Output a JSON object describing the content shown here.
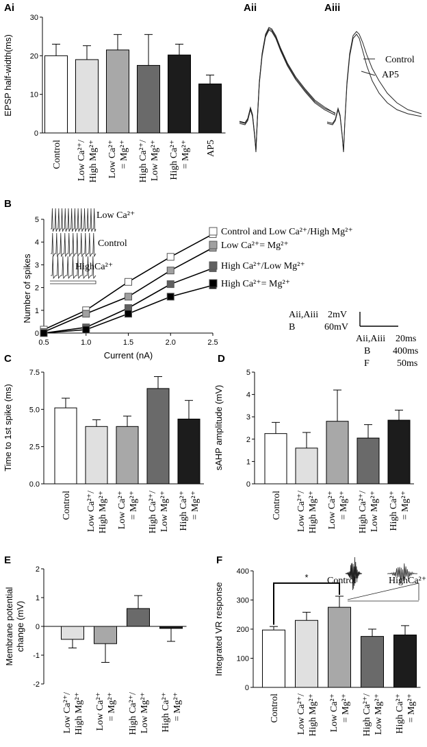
{
  "panels": {
    "ai": "Ai",
    "aii": "Aii",
    "aiii": "Aiii",
    "b": "B",
    "c": "C",
    "d": "D",
    "e": "E",
    "f": "F"
  },
  "palette": {
    "control": "#ffffff",
    "lowCaHighMg": "#e0e0e0",
    "lowCaEqMg": "#a8a8a8",
    "highCaLowMg": "#6a6a6a",
    "highCaEqMg": "#1c1c1c",
    "ap5": "#1c1c1c"
  },
  "labels": {
    "control": "Control",
    "lowCaHighMg": [
      "Low Ca²⁺/",
      "High Mg²⁺"
    ],
    "lowCaEqMg": [
      "Low Ca²⁺",
      "= Mg²⁺"
    ],
    "highCaLowMg": [
      "High Ca²⁺/",
      "Low Mg²⁺"
    ],
    "highCaEqMg": [
      "High Ca²⁺",
      "= Mg²⁺"
    ],
    "ap5": "AP5"
  },
  "traces": {
    "aiii_legend": [
      "Control",
      "AP5"
    ],
    "b_insets": [
      "Low Ca²⁺",
      "Control",
      "HighCa²⁺"
    ],
    "f_insets": [
      "Control",
      "HighCa²⁺"
    ]
  },
  "scalebar": {
    "lines": [
      [
        "Aii,Aiii",
        "2mV"
      ],
      [
        "B",
        "60mV"
      ]
    ],
    "time": [
      [
        "Aii,Aiii",
        "20ms"
      ],
      [
        "B",
        "400ms"
      ],
      [
        "F",
        "50ms"
      ]
    ]
  },
  "chart_data": [
    {
      "id": "Ai",
      "type": "bar",
      "ylabel": "EPSP half-width(ms)",
      "ylim": [
        0,
        30
      ],
      "yticks": [
        0,
        10,
        20,
        30
      ],
      "categories": [
        "control",
        "lowCaHighMg",
        "lowCaEqMg",
        "highCaLowMg",
        "highCaEqMg",
        "ap5"
      ],
      "values": [
        20,
        19,
        21.5,
        17.5,
        20.2,
        12.7
      ],
      "errors": [
        3,
        3.6,
        4,
        8,
        2.8,
        2.3
      ]
    },
    {
      "id": "B",
      "type": "line",
      "xlabel": "Current (nA)",
      "ylabel": "Number of spikes",
      "xlim": [
        0.5,
        2.5
      ],
      "ylim": [
        0,
        5
      ],
      "xticks": [
        0.5,
        1.0,
        1.5,
        2.0,
        2.5
      ],
      "yticks": [
        0,
        1,
        2,
        3,
        4,
        5
      ],
      "series": [
        {
          "name": "Control and Low Ca²⁺/High Mg²⁺",
          "color": "#ffffff",
          "x": [
            0.5,
            1.0,
            1.5,
            2.0,
            2.5
          ],
          "values": [
            0.15,
            1.0,
            2.25,
            3.35,
            4.35
          ]
        },
        {
          "name": "Low Ca²⁺= Mg²⁺",
          "color": "#a0a0a0",
          "x": [
            0.5,
            1.0,
            1.5,
            2.0,
            2.5
          ],
          "values": [
            0.05,
            0.85,
            1.6,
            2.75,
            3.75
          ]
        },
        {
          "name": "High Ca²⁺/Low Mg²⁺",
          "color": "#606060",
          "x": [
            0.5,
            1.0,
            1.5,
            2.0,
            2.5
          ],
          "values": [
            0.0,
            0.25,
            1.1,
            2.15,
            2.85
          ]
        },
        {
          "name": "High Ca²⁺= Mg²⁺",
          "color": "#000000",
          "x": [
            0.5,
            1.0,
            1.5,
            2.0,
            2.5
          ],
          "values": [
            0.0,
            0.15,
            0.85,
            1.6,
            2.1
          ]
        }
      ]
    },
    {
      "id": "C",
      "type": "bar",
      "ylabel": "Time to 1st spike (ms)",
      "ylim": [
        0,
        7.5
      ],
      "yticks": [
        0.0,
        2.5,
        5.0,
        7.5
      ],
      "categories": [
        "control",
        "lowCaHighMg",
        "lowCaEqMg",
        "highCaLowMg",
        "highCaEqMg"
      ],
      "values": [
        5.1,
        3.85,
        3.85,
        6.4,
        4.35
      ],
      "errors": [
        0.65,
        0.45,
        0.7,
        0.8,
        1.25
      ]
    },
    {
      "id": "D",
      "type": "bar",
      "ylabel": "sAHP amplitude (mV)",
      "ylim": [
        0,
        5
      ],
      "yticks": [
        0,
        1,
        2,
        3,
        4,
        5
      ],
      "categories": [
        "control",
        "lowCaHighMg",
        "lowCaEqMg",
        "highCaLowMg",
        "highCaEqMg"
      ],
      "values": [
        2.25,
        1.6,
        2.8,
        2.05,
        2.85
      ],
      "errors": [
        0.5,
        0.7,
        1.4,
        0.6,
        0.45
      ]
    },
    {
      "id": "E",
      "type": "bar",
      "ylabel": [
        "Membrane potential",
        "change (mV)"
      ],
      "ylim": [
        -2,
        2
      ],
      "yticks": [
        -2,
        -1,
        0,
        1,
        2
      ],
      "categories": [
        "lowCaHighMg",
        "lowCaEqMg",
        "highCaLowMg",
        "highCaEqMg"
      ],
      "values": [
        -0.45,
        -0.6,
        0.62,
        -0.07
      ],
      "errors": [
        0.3,
        0.65,
        0.45,
        0.45
      ]
    },
    {
      "id": "F",
      "type": "bar",
      "ylabel": "Integrated VR response",
      "ylim": [
        0,
        400
      ],
      "yticks": [
        0,
        100,
        200,
        300,
        400
      ],
      "categories": [
        "control",
        "lowCaHighMg",
        "lowCaEqMg",
        "highCaLowMg",
        "highCaEqMg"
      ],
      "values": [
        197,
        230,
        275,
        175,
        180
      ],
      "errors": [
        12,
        28,
        38,
        25,
        32
      ],
      "annotation": "*"
    }
  ]
}
